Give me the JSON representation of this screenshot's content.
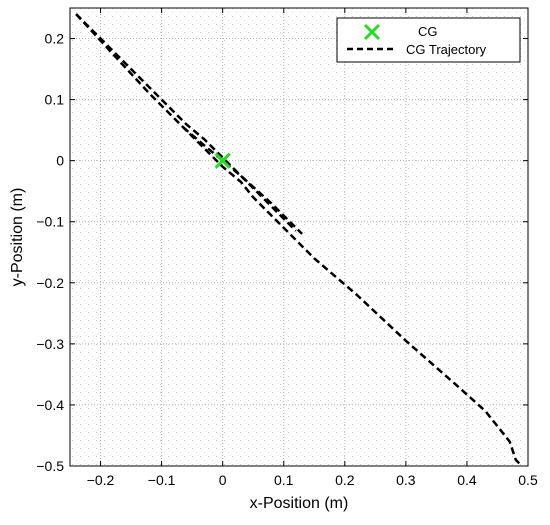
{
  "chart_data": {
    "type": "line",
    "xlabel": "x-Position (m)",
    "ylabel": "y-Position (m)",
    "xlim": [
      -0.25,
      0.5
    ],
    "ylim": [
      -0.5,
      0.25
    ],
    "x_ticks": [
      -0.2,
      -0.1,
      0,
      0.1,
      0.2,
      0.3,
      0.4,
      0.5
    ],
    "x_tick_labels": [
      "−0.2",
      "−0.1",
      "0",
      "0.1",
      "0.2",
      "0.3",
      "0.4",
      "0.5"
    ],
    "y_ticks": [
      0.2,
      0.1,
      0,
      -0.1,
      -0.2,
      -0.3,
      -0.4,
      -0.5
    ],
    "y_tick_labels": [
      "0.2",
      "0.1",
      "0",
      "−0.1",
      "−0.2",
      "−0.3",
      "−0.4",
      "−0.5"
    ],
    "grid": true,
    "legend_position": "top-right",
    "series": [
      {
        "name": "CG",
        "kind": "marker",
        "marker": "x",
        "color": "#22dd22",
        "points": [
          [
            0.0,
            0.0
          ]
        ]
      },
      {
        "name": "CG Trajectory",
        "kind": "line",
        "style": "dashed",
        "color": "#000000",
        "paths": [
          [
            [
              -0.24,
              0.24
            ],
            [
              -0.2,
              0.2
            ],
            [
              -0.15,
              0.15
            ],
            [
              -0.1,
              0.1
            ],
            [
              -0.06,
              0.06
            ],
            [
              -0.03,
              0.035
            ],
            [
              0.0,
              0.005
            ],
            [
              0.02,
              -0.015
            ],
            [
              0.05,
              -0.045
            ],
            [
              0.09,
              -0.085
            ],
            [
              0.12,
              -0.115
            ]
          ],
          [
            [
              -0.24,
              0.24
            ],
            [
              -0.18,
              0.175
            ],
            [
              -0.12,
              0.11
            ],
            [
              -0.08,
              0.07
            ],
            [
              -0.05,
              0.04
            ],
            [
              -0.02,
              0.01
            ],
            [
              0.0,
              -0.01
            ],
            [
              0.03,
              -0.035
            ],
            [
              0.05,
              -0.06
            ],
            [
              0.1,
              -0.11
            ],
            [
              0.15,
              -0.16
            ],
            [
              0.22,
              -0.22
            ],
            [
              0.3,
              -0.295
            ],
            [
              0.38,
              -0.365
            ],
            [
              0.43,
              -0.41
            ],
            [
              0.47,
              -0.46
            ],
            [
              0.48,
              -0.49
            ],
            [
              0.49,
              -0.5
            ]
          ],
          [
            [
              -0.065,
              0.055
            ],
            [
              -0.03,
              0.025
            ],
            [
              0.0,
              0.0
            ],
            [
              0.03,
              -0.025
            ],
            [
              0.08,
              -0.07
            ],
            [
              0.13,
              -0.12
            ]
          ]
        ]
      }
    ]
  }
}
